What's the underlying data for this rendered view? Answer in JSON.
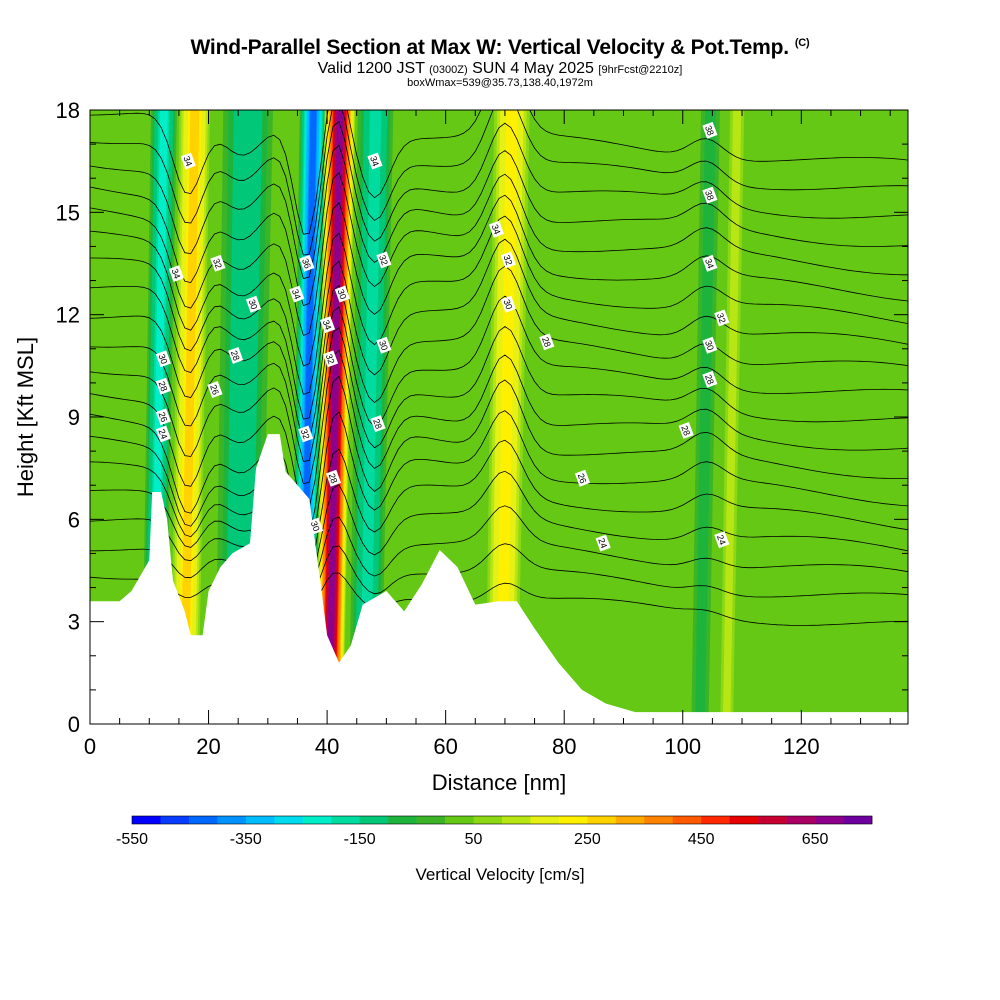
{
  "title": {
    "main": "Wind-Parallel Section at Max W: Vertical Velocity & Pot.Temp.",
    "copyright": "(C)",
    "valid_prefix": "Valid 1200 JST",
    "valid_utc": "(0300Z)",
    "valid_date": "SUN 4 May 2025",
    "forecast": "[9hrFcst@2210z]",
    "box_info": "boxWmax=539@35.73,138.40,1972m"
  },
  "chart_data": {
    "type": "heatmap",
    "xlabel": "Distance [nm]",
    "ylabel": "Height [Kft MSL]",
    "xlim": [
      0,
      138
    ],
    "ylim": [
      0,
      18
    ],
    "x_ticks": [
      0,
      20,
      40,
      60,
      80,
      100,
      120
    ],
    "y_ticks": [
      0,
      3,
      6,
      9,
      12,
      15,
      18
    ],
    "x_tick_labels": [
      "0",
      "20",
      "40",
      "60",
      "80",
      "100",
      "120"
    ],
    "y_tick_labels": [
      "0",
      "3",
      "6",
      "9",
      "12",
      "15",
      "18"
    ],
    "colorbar": {
      "label": "Vertical Velocity [cm/s]",
      "min": -550,
      "max": 750,
      "tick_values": [
        -550,
        -350,
        -150,
        50,
        250,
        450,
        650
      ],
      "tick_labels": [
        "-550",
        "-350",
        "-150",
        "50",
        "250",
        "450",
        "650"
      ],
      "colors": [
        "#0000ff",
        "#0a3cff",
        "#0068ff",
        "#0092ff",
        "#00bbff",
        "#00dcee",
        "#00eec8",
        "#00dca0",
        "#00c878",
        "#1eb43c",
        "#3cb428",
        "#64c814",
        "#8cd814",
        "#b8e614",
        "#e6f014",
        "#fff000",
        "#ffd200",
        "#ffaa00",
        "#ff8200",
        "#ff5a00",
        "#ff2800",
        "#e60000",
        "#c80032",
        "#aa0064",
        "#8c008c",
        "#6e00a0"
      ]
    },
    "background_value": 20,
    "velocity_bands": [
      {
        "x_center": 11.3,
        "width": 2.2,
        "value": -250
      },
      {
        "x_center": 16.5,
        "width": 2.6,
        "value": 280
      },
      {
        "x_center": 25.5,
        "width": 4.2,
        "value": -180
      },
      {
        "x_center": 36.5,
        "width": 2.3,
        "value": -480
      },
      {
        "x_center": 41.0,
        "width": 2.6,
        "value": 650
      },
      {
        "x_center": 47.0,
        "width": 3.0,
        "value": -220
      },
      {
        "x_center": 70.0,
        "width": 3.0,
        "value": 230
      },
      {
        "x_center": 103.5,
        "width": 1.6,
        "value": -100
      },
      {
        "x_center": 108.0,
        "width": 1.2,
        "value": 120
      }
    ],
    "terrain": [
      [
        0,
        3.6
      ],
      [
        5,
        3.6
      ],
      [
        7,
        3.9
      ],
      [
        10,
        4.8
      ],
      [
        10.5,
        6.8
      ],
      [
        12,
        6.8
      ],
      [
        13,
        6.0
      ],
      [
        14,
        4.2
      ],
      [
        16,
        3.3
      ],
      [
        17,
        2.6
      ],
      [
        19,
        2.6
      ],
      [
        20,
        3.9
      ],
      [
        22,
        4.6
      ],
      [
        24,
        5.0
      ],
      [
        27,
        5.3
      ],
      [
        28,
        7.5
      ],
      [
        30,
        8.5
      ],
      [
        32,
        8.5
      ],
      [
        33,
        7.4
      ],
      [
        35,
        7.0
      ],
      [
        37,
        6.6
      ],
      [
        39,
        4.0
      ],
      [
        40,
        2.6
      ],
      [
        42,
        1.8
      ],
      [
        44,
        2.3
      ],
      [
        46,
        3.5
      ],
      [
        50,
        3.9
      ],
      [
        53,
        3.3
      ],
      [
        56,
        4.1
      ],
      [
        59,
        5.1
      ],
      [
        62,
        4.6
      ],
      [
        65,
        3.5
      ],
      [
        69,
        3.6
      ],
      [
        72,
        3.6
      ],
      [
        75,
        2.8
      ],
      [
        79,
        1.8
      ],
      [
        83,
        1.0
      ],
      [
        87,
        0.6
      ],
      [
        92,
        0.35
      ],
      [
        138,
        0.35
      ]
    ],
    "contour_labels": [
      {
        "text": "34",
        "x": 16.5,
        "y": 16.5
      },
      {
        "text": "34",
        "x": 14.5,
        "y": 13.2
      },
      {
        "text": "32",
        "x": 21.5,
        "y": 13.5
      },
      {
        "text": "30",
        "x": 27.5,
        "y": 12.3
      },
      {
        "text": "28",
        "x": 24.5,
        "y": 10.8
      },
      {
        "text": "26",
        "x": 21.0,
        "y": 9.8
      },
      {
        "text": "30",
        "x": 12.3,
        "y": 10.7
      },
      {
        "text": "28",
        "x": 12.3,
        "y": 9.9
      },
      {
        "text": "26",
        "x": 12.3,
        "y": 9.0
      },
      {
        "text": "24",
        "x": 12.3,
        "y": 8.5
      },
      {
        "text": "36",
        "x": 36.5,
        "y": 13.5
      },
      {
        "text": "34",
        "x": 34.8,
        "y": 12.6
      },
      {
        "text": "34",
        "x": 40.0,
        "y": 11.7
      },
      {
        "text": "32",
        "x": 40.5,
        "y": 10.7
      },
      {
        "text": "30",
        "x": 42.5,
        "y": 12.6
      },
      {
        "text": "32",
        "x": 36.3,
        "y": 8.5
      },
      {
        "text": "28",
        "x": 41.0,
        "y": 7.2
      },
      {
        "text": "30",
        "x": 38.0,
        "y": 5.8
      },
      {
        "text": "34",
        "x": 48.0,
        "y": 16.5
      },
      {
        "text": "32",
        "x": 49.5,
        "y": 13.6
      },
      {
        "text": "30",
        "x": 49.5,
        "y": 11.1
      },
      {
        "text": "28",
        "x": 48.5,
        "y": 8.8
      },
      {
        "text": "34",
        "x": 68.5,
        "y": 14.5
      },
      {
        "text": "32",
        "x": 70.5,
        "y": 13.6
      },
      {
        "text": "30",
        "x": 70.5,
        "y": 12.3
      },
      {
        "text": "28",
        "x": 77.0,
        "y": 11.2
      },
      {
        "text": "26",
        "x": 83.0,
        "y": 7.2
      },
      {
        "text": "24",
        "x": 86.5,
        "y": 5.3
      },
      {
        "text": "38",
        "x": 104.5,
        "y": 17.4
      },
      {
        "text": "38",
        "x": 104.5,
        "y": 15.5
      },
      {
        "text": "34",
        "x": 104.5,
        "y": 13.5
      },
      {
        "text": "32",
        "x": 106.5,
        "y": 11.9
      },
      {
        "text": "30",
        "x": 104.5,
        "y": 11.1
      },
      {
        "text": "28",
        "x": 104.5,
        "y": 10.1
      },
      {
        "text": "28",
        "x": 100.5,
        "y": 8.6
      },
      {
        "text": "24",
        "x": 106.5,
        "y": 5.4
      }
    ]
  }
}
